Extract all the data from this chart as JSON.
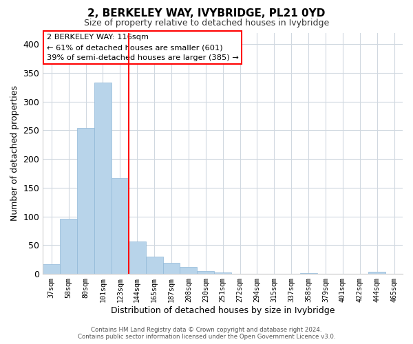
{
  "title": "2, BERKELEY WAY, IVYBRIDGE, PL21 0YD",
  "subtitle": "Size of property relative to detached houses in Ivybridge",
  "xlabel": "Distribution of detached houses by size in Ivybridge",
  "ylabel": "Number of detached properties",
  "bar_labels": [
    "37sqm",
    "58sqm",
    "80sqm",
    "101sqm",
    "123sqm",
    "144sqm",
    "165sqm",
    "187sqm",
    "208sqm",
    "230sqm",
    "251sqm",
    "272sqm",
    "294sqm",
    "315sqm",
    "337sqm",
    "358sqm",
    "379sqm",
    "401sqm",
    "422sqm",
    "444sqm",
    "465sqm"
  ],
  "bar_values": [
    17,
    96,
    254,
    333,
    167,
    57,
    30,
    19,
    12,
    5,
    2,
    0,
    0,
    0,
    0,
    1,
    0,
    0,
    0,
    4,
    0
  ],
  "bar_color": "#b8d4ea",
  "bar_edge_color": "#90b8d8",
  "vline_color": "red",
  "vline_pos": 4.5,
  "ylim": [
    0,
    420
  ],
  "yticks": [
    0,
    50,
    100,
    150,
    200,
    250,
    300,
    350,
    400
  ],
  "annotation_line1": "2 BERKELEY WAY: 116sqm",
  "annotation_line2": "← 61% of detached houses are smaller (601)",
  "annotation_line3": "39% of semi-detached houses are larger (385) →",
  "footer1": "Contains HM Land Registry data © Crown copyright and database right 2024.",
  "footer2": "Contains public sector information licensed under the Open Government Licence v3.0.",
  "bg_color": "#ffffff",
  "grid_color": "#d0d8e0"
}
